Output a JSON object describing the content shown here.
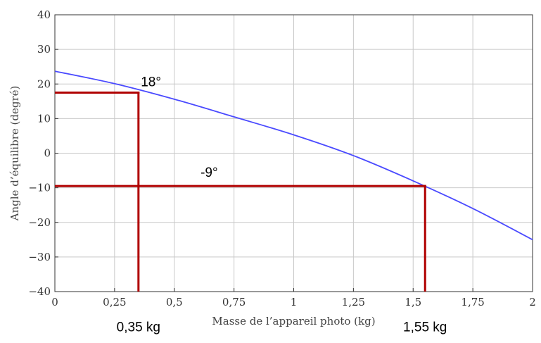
{
  "chart_data": {
    "type": "line",
    "xlabel": "Masse de l’appareil photo (kg)",
    "ylabel": "Angle d’équilibre (degré)",
    "xlim": [
      0,
      2
    ],
    "ylim": [
      -40,
      40
    ],
    "grid": true,
    "x_ticks": [
      0,
      0.25,
      0.5,
      0.75,
      1,
      1.25,
      1.5,
      1.75,
      2
    ],
    "x_tick_labels": [
      "0",
      "0,25",
      "0,5",
      "0,75",
      "1",
      "1,25",
      "1,5",
      "1,75",
      "2"
    ],
    "y_ticks": [
      -40,
      -30,
      -20,
      -10,
      0,
      10,
      20,
      30,
      40
    ],
    "y_tick_labels": [
      "−40",
      "−30",
      "−20",
      "−10",
      "0",
      "10",
      "20",
      "30",
      "40"
    ],
    "series": [
      {
        "color": "#4a4aff",
        "x": [
          0,
          0.25,
          0.5,
          0.75,
          1,
          1.25,
          1.5,
          1.75,
          2
        ],
        "y": [
          23.7,
          20.1,
          15.6,
          10.5,
          5.3,
          -0.7,
          -8.0,
          -16.0,
          -25.0
        ]
      }
    ],
    "markers": [
      {
        "x": 0.35,
        "y": 17.5,
        "color": "#b00000"
      },
      {
        "x": 1.55,
        "y": -9.5,
        "color": "#b00000"
      }
    ],
    "annotations": [
      {
        "text": "18°",
        "x": 0.36,
        "y": 19.3
      },
      {
        "text": "-9°",
        "x": 0.61,
        "y": -6.8
      },
      {
        "text": "0,35 kg",
        "x": 0.35,
        "y": -51.5
      },
      {
        "text": "1,55 kg",
        "x": 1.55,
        "y": -51.5
      }
    ]
  }
}
